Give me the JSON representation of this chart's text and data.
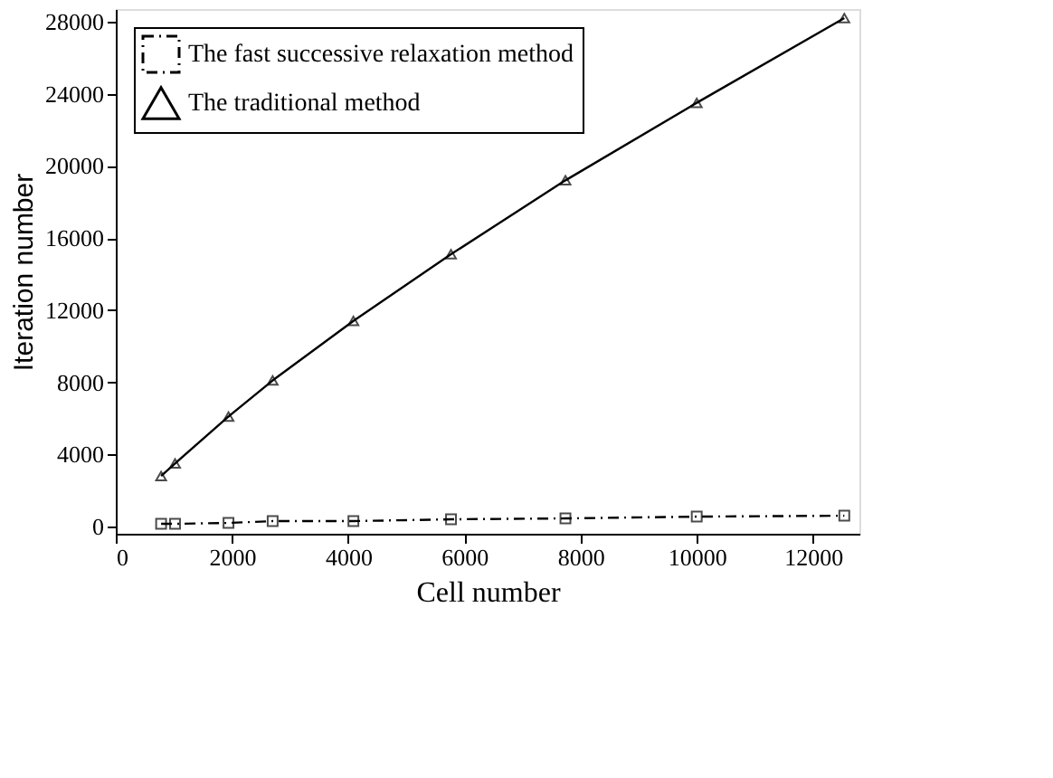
{
  "chart_data": {
    "type": "line",
    "xlabel": "Cell number",
    "ylabel": "Iteration number",
    "x": [
      780,
      1020,
      1940,
      2700,
      4090,
      5770,
      7740,
      10000,
      12540
    ],
    "series": [
      {
        "name": "The fast successive relaxation method",
        "color": "#000000",
        "marker": "square",
        "line_style": "dashed",
        "values": [
          150,
          150,
          200,
          300,
          300,
          400,
          450,
          550,
          600
        ]
      },
      {
        "name": "The traditional method",
        "color": "#000000",
        "marker": "triangle",
        "line_style": "solid",
        "values": [
          2800,
          3500,
          6100,
          8100,
          11400,
          15100,
          19200,
          23500,
          28200
        ]
      }
    ],
    "xlim": [
      0,
      12800
    ],
    "xticks": [
      0,
      2000,
      4000,
      6000,
      8000,
      10000,
      12000
    ],
    "ylim": [
      -400,
      28700
    ],
    "yticks": [
      0,
      4000,
      8000,
      12000,
      16000,
      20000,
      24000,
      28000
    ],
    "grid": false,
    "legend": "top left"
  }
}
